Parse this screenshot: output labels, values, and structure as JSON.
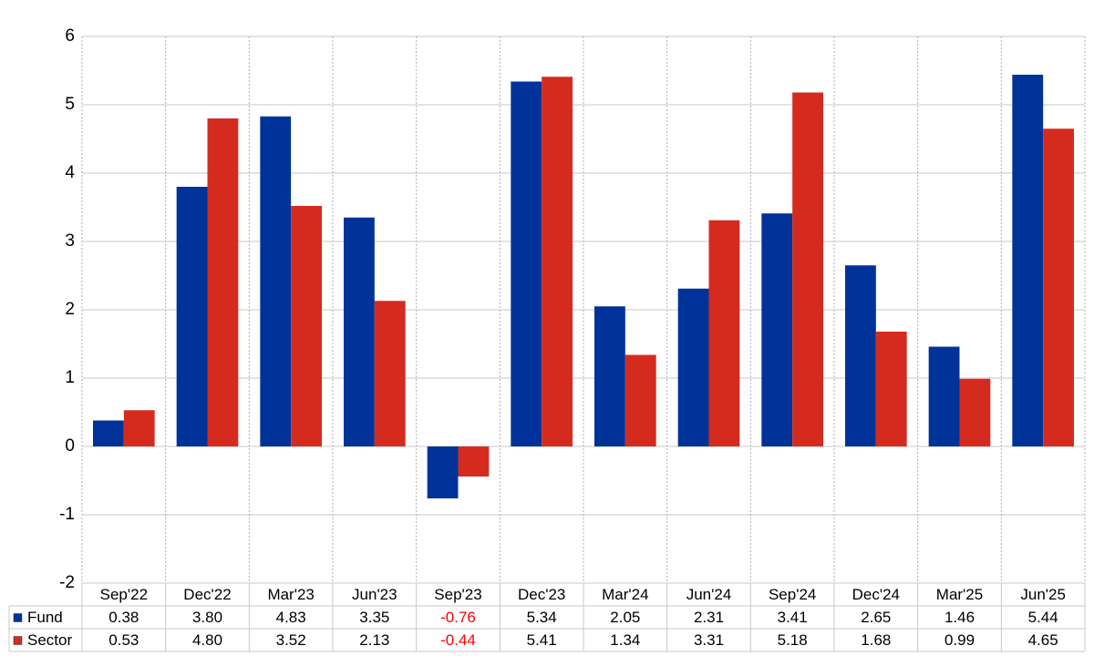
{
  "chart_data": {
    "type": "bar",
    "categories": [
      "Sep'22",
      "Dec'22",
      "Mar'23",
      "Jun'23",
      "Sep'23",
      "Dec'23",
      "Mar'24",
      "Jun'24",
      "Sep'24",
      "Dec'24",
      "Mar'25",
      "Jun'25"
    ],
    "series": [
      {
        "name": "Fund",
        "color": "#003399",
        "values": [
          0.38,
          3.8,
          4.83,
          3.35,
          -0.76,
          5.34,
          2.05,
          2.31,
          3.41,
          2.65,
          1.46,
          5.44
        ],
        "value_labels": [
          "0.38",
          "3.80",
          "4.83",
          "3.35",
          "-0.76",
          "5.34",
          "2.05",
          "2.31",
          "3.41",
          "2.65",
          "1.46",
          "5.44"
        ]
      },
      {
        "name": "Sector",
        "color": "#d52b1e",
        "values": [
          0.53,
          4.8,
          3.52,
          2.13,
          -0.44,
          5.41,
          1.34,
          3.31,
          5.18,
          1.68,
          0.99,
          4.65
        ],
        "value_labels": [
          "0.53",
          "4.80",
          "3.52",
          "2.13",
          "-0.44",
          "5.41",
          "1.34",
          "3.31",
          "5.18",
          "1.68",
          "0.99",
          "4.65"
        ]
      }
    ],
    "ylim": [
      -2,
      6
    ],
    "yticks": [
      -2,
      -1,
      0,
      1,
      2,
      3,
      4,
      5,
      6
    ],
    "grid": true,
    "negative_label_color": "#ff0000"
  }
}
